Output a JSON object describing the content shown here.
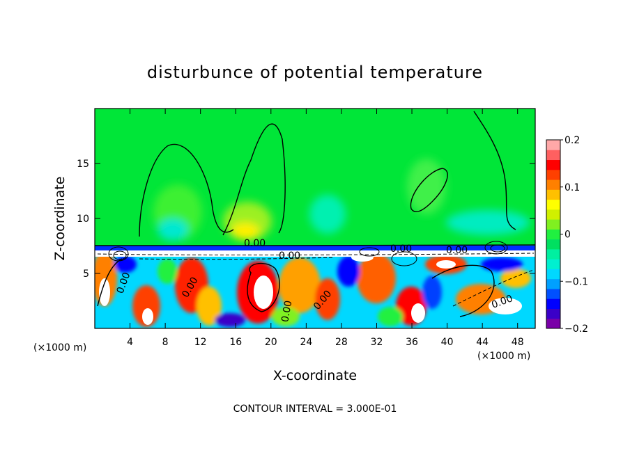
{
  "chart_data": {
    "type": "heatmap",
    "title": "disturbunce of potential temperature",
    "xlabel": "X-coordinate",
    "ylabel": "Z-coordinate",
    "x_unit_label": "(×1000 m)",
    "xlim": [
      0,
      50
    ],
    "ylim": [
      0,
      20
    ],
    "x_ticks": [
      4,
      8,
      12,
      16,
      20,
      24,
      28,
      32,
      36,
      40,
      44,
      48
    ],
    "y_ticks": [
      5,
      10,
      15
    ],
    "colorbar": {
      "range": [
        -0.2,
        0.2
      ],
      "tick_values": [
        0.2,
        0.1,
        0,
        -0.1,
        -0.2
      ],
      "tick_labels": [
        "0.2",
        "0.1",
        "0",
        "−0.1",
        "−0.2"
      ],
      "colors": [
        "#7a00a8",
        "#3a00c8",
        "#0000ff",
        "#0050ff",
        "#00a0ff",
        "#00d8ff",
        "#00f0d0",
        "#00f0a0",
        "#00e060",
        "#20f040",
        "#80f020",
        "#d0f000",
        "#ffff00",
        "#ffc000",
        "#ff8000",
        "#ff4000",
        "#ff0000",
        "#ff6060",
        "#ffa8a8"
      ]
    },
    "contour_labels": [
      "0.00",
      "0.00",
      "0.00",
      "0.00",
      "0.00",
      "0.00",
      "0.00",
      "0.00",
      "0.00"
    ],
    "footer": "CONTOUR INTERVAL = 3.000E-01"
  }
}
